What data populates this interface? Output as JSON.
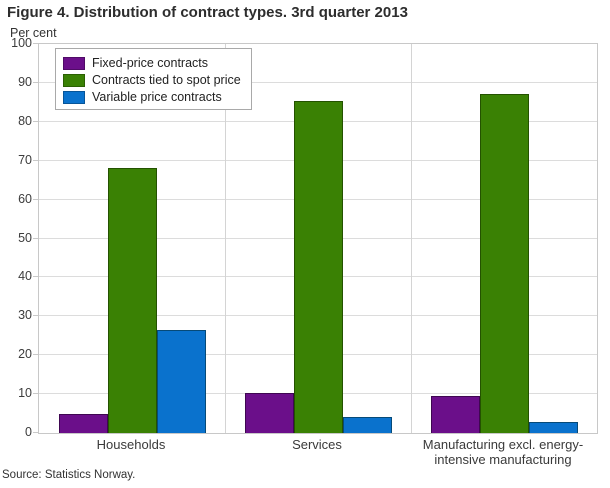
{
  "header": {
    "title": "Figure 4. Distribution of contract types. 3rd quarter 2013",
    "y_unit_label": "Per cent"
  },
  "footer": {
    "source": "Source: Statistics Norway."
  },
  "colors": {
    "title_text": "#2d2d2d",
    "axis_text": "#3c3c3c",
    "grid": "#dcdcdc",
    "plot_border": "#c8c8c8",
    "legend_border": "#a9a9a9",
    "series_fixed_price": "#6B0F8A",
    "series_spot_price": "#3A8104",
    "series_variable_price": "#0A72CD"
  },
  "chart_data": {
    "type": "bar",
    "title": "Figure 4. Distribution of contract types. 3rd quarter 2013",
    "xlabel": "",
    "ylabel": "Per cent",
    "ylim": [
      0,
      100
    ],
    "ytick_step": 10,
    "grid": true,
    "legend_position": "top-left",
    "categories": [
      "Households",
      "Services",
      "Manufacturing excl. energy-intensive manufacturing"
    ],
    "series": [
      {
        "name": "Fixed-price contracts",
        "color": "#6B0F8A",
        "border_color": "#3F0752",
        "values": [
          4.8,
          10.3,
          9.6
        ]
      },
      {
        "name": "Contracts tied to spot price",
        "color": "#3A8104",
        "border_color": "#245200",
        "values": [
          68.2,
          85.4,
          87.1
        ]
      },
      {
        "name": "Variable price contracts",
        "color": "#0A72CD",
        "border_color": "#064A78",
        "values": [
          26.6,
          4.1,
          2.7
        ]
      }
    ]
  }
}
